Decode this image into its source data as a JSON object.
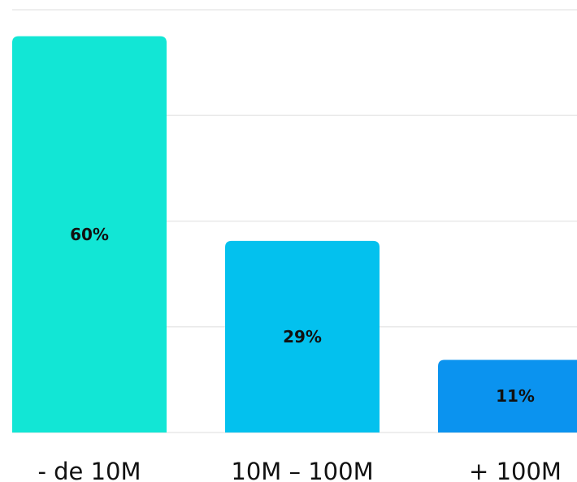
{
  "chart_data": {
    "type": "bar",
    "categories": [
      "- de 10M",
      "10M – 100M",
      "+ 100M"
    ],
    "values": [
      60,
      29,
      11
    ],
    "value_labels": [
      "60%",
      "29%",
      "11%"
    ],
    "ylim": [
      0,
      64
    ],
    "grid": true,
    "colors": [
      "#12e6d5",
      "#03c1ee",
      "#0b93ef"
    ],
    "title": "",
    "xlabel": "",
    "ylabel": ""
  }
}
